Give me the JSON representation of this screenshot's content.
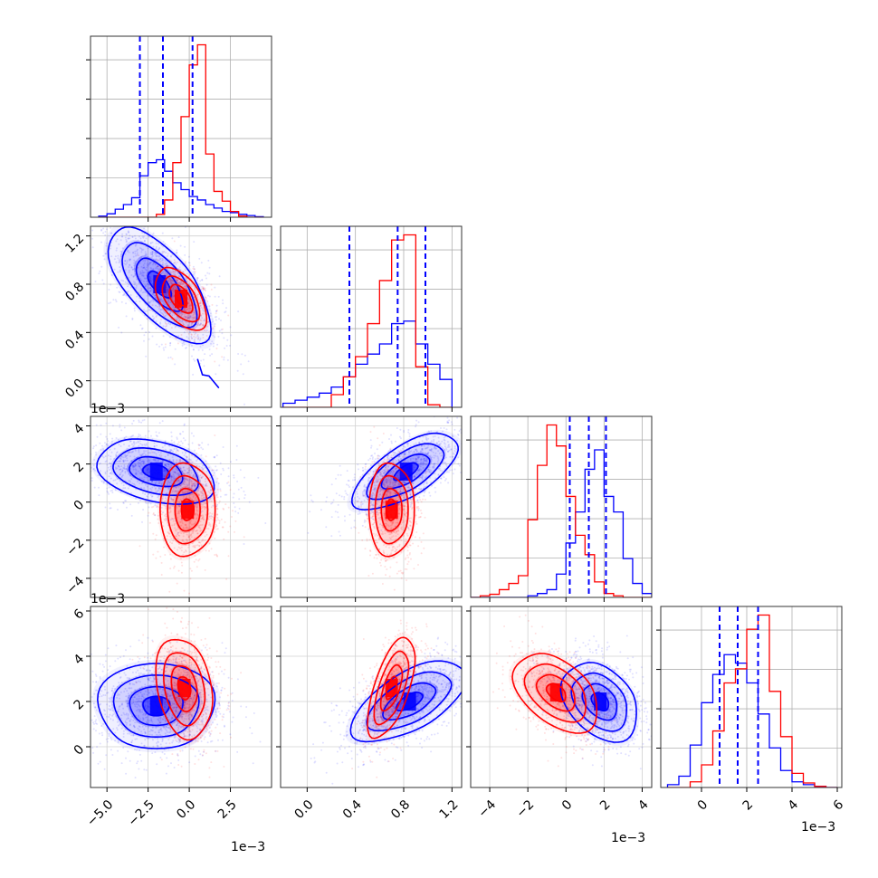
{
  "chart_data": {
    "type": "corner",
    "grid": true,
    "colors": {
      "series_a": "#0000ff",
      "series_b": "#ff0000"
    },
    "params": [
      {
        "offset_label": "1e−3",
        "xlim": [
          -6.0,
          5.0
        ],
        "ticks": [
          -5.0,
          -2.5,
          0.0,
          2.5
        ],
        "tick_labels": [
          "−5.0",
          "−2.5",
          "0.0",
          "2.5"
        ],
        "quantiles": [
          -3.0,
          -1.6,
          0.2
        ]
      },
      {
        "offset_label": "1e−3",
        "xlim": [
          -0.22,
          1.28
        ],
        "ticks": [
          0.0,
          0.4,
          0.8,
          1.2
        ],
        "tick_labels": [
          "0.0",
          "0.4",
          "0.8",
          "1.2"
        ],
        "quantiles": [
          0.35,
          0.75,
          0.98
        ]
      },
      {
        "offset_label": "1e−3",
        "xlim": [
          -5.0,
          4.5
        ],
        "ticks": [
          -4,
          -2,
          0,
          2,
          4
        ],
        "tick_labels": [
          "−4",
          "−2",
          "0",
          "2",
          "4"
        ],
        "quantiles": [
          0.2,
          1.2,
          2.1
        ]
      },
      {
        "offset_label": "1e−3",
        "xlim": [
          -1.8,
          6.2
        ],
        "ticks": [
          0,
          2,
          4,
          6
        ],
        "tick_labels": [
          "0",
          "2",
          "4",
          "6"
        ],
        "quantiles": [
          0.8,
          1.6,
          2.5
        ]
      }
    ],
    "histograms": [
      {
        "bins": [
          -5.5,
          -5.0,
          -4.5,
          -4.0,
          -3.5,
          -3.0,
          -2.5,
          -2.0,
          -1.5,
          -1.0,
          -0.5,
          0.0,
          0.5,
          1.0,
          1.5,
          2.0,
          2.5,
          3.0,
          3.5,
          4.0,
          4.5
        ],
        "series_a": [
          2,
          6,
          14,
          22,
          34,
          72,
          95,
          100,
          80,
          60,
          48,
          36,
          30,
          22,
          16,
          10,
          8,
          5,
          3,
          1
        ],
        "series_b": [
          0,
          0,
          0,
          0,
          0,
          0,
          0,
          5,
          30,
          95,
          175,
          265,
          300,
          110,
          45,
          28,
          10,
          2,
          0,
          0
        ]
      },
      {
        "bins": [
          -0.2,
          -0.1,
          0.0,
          0.1,
          0.2,
          0.3,
          0.4,
          0.5,
          0.6,
          0.7,
          0.8,
          0.9,
          1.0,
          1.1,
          1.2
        ],
        "series_a": [
          8,
          14,
          20,
          28,
          40,
          60,
          85,
          105,
          125,
          165,
          170,
          125,
          85,
          55
        ],
        "series_b": [
          0,
          0,
          0,
          0,
          25,
          60,
          100,
          165,
          250,
          330,
          340,
          80,
          5,
          0
        ]
      },
      {
        "bins": [
          -5.0,
          -4.5,
          -4.0,
          -3.5,
          -3.0,
          -2.5,
          -2.0,
          -1.5,
          -1.0,
          -0.5,
          0.0,
          0.5,
          1.0,
          1.5,
          2.0,
          2.5,
          3.0,
          3.5,
          4.0,
          4.5
        ],
        "series_a": [
          0,
          0,
          0,
          0,
          0,
          0,
          2,
          5,
          10,
          30,
          70,
          110,
          165,
          190,
          130,
          110,
          50,
          18,
          5
        ],
        "series_b": [
          0,
          2,
          4,
          10,
          18,
          28,
          100,
          170,
          222,
          195,
          130,
          80,
          55,
          20,
          5,
          2,
          0,
          0,
          0
        ]
      },
      {
        "bins": [
          -1.5,
          -1.0,
          -0.5,
          0.0,
          0.5,
          1.0,
          1.5,
          2.0,
          2.5,
          3.0,
          3.5,
          4.0,
          4.5,
          5.0,
          5.5,
          6.0
        ],
        "series_a": [
          5,
          20,
          75,
          150,
          200,
          235,
          220,
          185,
          130,
          70,
          30,
          10,
          5,
          2,
          0
        ],
        "series_b": [
          0,
          0,
          10,
          40,
          100,
          185,
          210,
          280,
          305,
          170,
          90,
          25,
          8,
          2,
          0
        ]
      }
    ],
    "pairs": [
      {
        "row": 1,
        "col": 0,
        "series_a": {
          "center": [
            -1.8,
            0.8
          ],
          "sd": [
            1.4,
            0.22
          ],
          "corr": -0.65
        },
        "series_b": {
          "center": [
            -0.5,
            0.68
          ],
          "sd": [
            0.7,
            0.12
          ],
          "corr": -0.5
        },
        "spur_a": [
          [
            0.5,
            0.18
          ],
          [
            0.8,
            0.05
          ],
          [
            1.2,
            0.04
          ],
          [
            1.8,
            -0.06
          ]
        ]
      },
      {
        "row": 2,
        "col": 0,
        "series_a": {
          "center": [
            -2.0,
            1.6
          ],
          "sd": [
            1.6,
            0.8
          ],
          "corr": -0.3
        },
        "series_b": {
          "center": [
            -0.1,
            -0.4
          ],
          "sd": [
            0.8,
            1.1
          ],
          "corr": 0.0
        }
      },
      {
        "row": 2,
        "col": 1,
        "series_a": {
          "center": [
            0.82,
            1.6
          ],
          "sd": [
            0.2,
            0.9
          ],
          "corr": 0.65
        },
        "series_b": {
          "center": [
            0.7,
            -0.4
          ],
          "sd": [
            0.09,
            1.1
          ],
          "corr": 0.0
        }
      },
      {
        "row": 3,
        "col": 0,
        "series_a": {
          "center": [
            -2.0,
            1.8
          ],
          "sd": [
            1.6,
            0.9
          ],
          "corr": 0.0
        },
        "series_b": {
          "center": [
            -0.3,
            2.6
          ],
          "sd": [
            0.8,
            1.0
          ],
          "corr": -0.2
        }
      },
      {
        "row": 3,
        "col": 1,
        "series_a": {
          "center": [
            0.85,
            2.0
          ],
          "sd": [
            0.22,
            0.8
          ],
          "corr": 0.6
        },
        "series_b": {
          "center": [
            0.7,
            2.6
          ],
          "sd": [
            0.09,
            1.0
          ],
          "corr": 0.6
        }
      },
      {
        "row": 3,
        "col": 2,
        "series_a": {
          "center": [
            1.8,
            2.0
          ],
          "sd": [
            0.9,
            0.8
          ],
          "corr": -0.3
        },
        "series_b": {
          "center": [
            -0.5,
            2.4
          ],
          "sd": [
            1.0,
            0.8
          ],
          "corr": -0.4
        }
      }
    ]
  }
}
